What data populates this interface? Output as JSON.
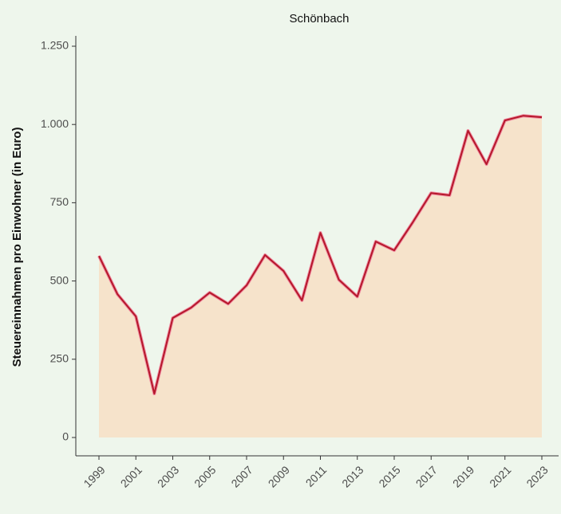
{
  "chart_data": {
    "type": "area",
    "title": "Schönbach",
    "y_label": "Steuereinnahmen pro Einwohner (in Euro)",
    "x": [
      1999,
      2000,
      2001,
      2002,
      2003,
      2004,
      2005,
      2006,
      2007,
      2008,
      2009,
      2010,
      2011,
      2012,
      2013,
      2014,
      2015,
      2016,
      2017,
      2018,
      2019,
      2020,
      2021,
      2022,
      2023
    ],
    "series": [
      {
        "color": "#b5182b",
        "fill": "#f6e3cb",
        "values": [
          580,
          458,
          387,
          140,
          382,
          415,
          463,
          427,
          486,
          583,
          532,
          438,
          654,
          504,
          450,
          626,
          598,
          687,
          781,
          774,
          980,
          873,
          1013,
          1028,
          1023
        ]
      }
    ],
    "xlim": [
      1999,
      2023
    ],
    "xticks": [
      1999,
      2001,
      2003,
      2005,
      2007,
      2009,
      2011,
      2013,
      2015,
      2017,
      2019,
      2021,
      2023
    ],
    "ylim": [
      0,
      1250
    ],
    "yticks": [
      0,
      250,
      500,
      750,
      {
        "value": 1000,
        "label": "1.000"
      },
      {
        "value": 1250,
        "label": "1.250"
      }
    ],
    "grid": false
  }
}
